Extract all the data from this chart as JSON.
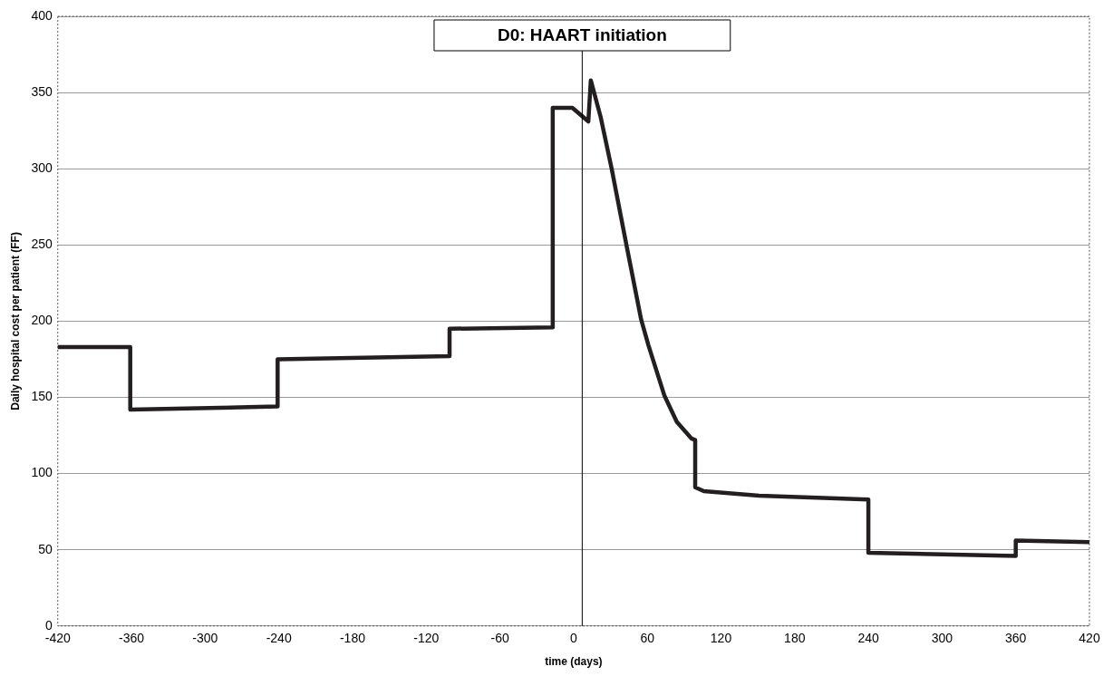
{
  "chart_data": {
    "type": "line",
    "xlabel": "time (days)",
    "ylabel": "Daily hospital cost per patient (FF)",
    "x": [
      -420,
      -361,
      -361,
      -241,
      -241,
      -101,
      -101,
      -17,
      -17,
      -1,
      12,
      14,
      22,
      31,
      43,
      55,
      61,
      74,
      84,
      96,
      99,
      99,
      106,
      151,
      240,
      240,
      360,
      360,
      420
    ],
    "series": [
      {
        "color": "#231f20",
        "values": [
          183,
          183,
          142,
          144,
          175,
          177,
          195,
          196,
          340,
          340,
          331,
          358,
          334,
          300,
          250,
          201,
          184,
          151,
          134,
          123,
          122,
          91,
          88.5,
          85.5,
          83,
          48,
          46,
          56,
          55
        ]
      }
    ],
    "xlim": [
      -420,
      420
    ],
    "xticks": [
      -420,
      -360,
      -300,
      -240,
      -180,
      -120,
      -60,
      0,
      60,
      120,
      180,
      240,
      300,
      360,
      420
    ],
    "ylim": [
      0,
      400
    ],
    "yticks": [
      0,
      50,
      100,
      150,
      200,
      250,
      300,
      350,
      400
    ],
    "ref_lines": [
      {
        "axis": "x",
        "value": 7,
        "label": "D0: HAART initiation",
        "color": "#000000"
      }
    ],
    "grid": "y",
    "legend": false,
    "marker": "none",
    "line_style": "solid"
  }
}
